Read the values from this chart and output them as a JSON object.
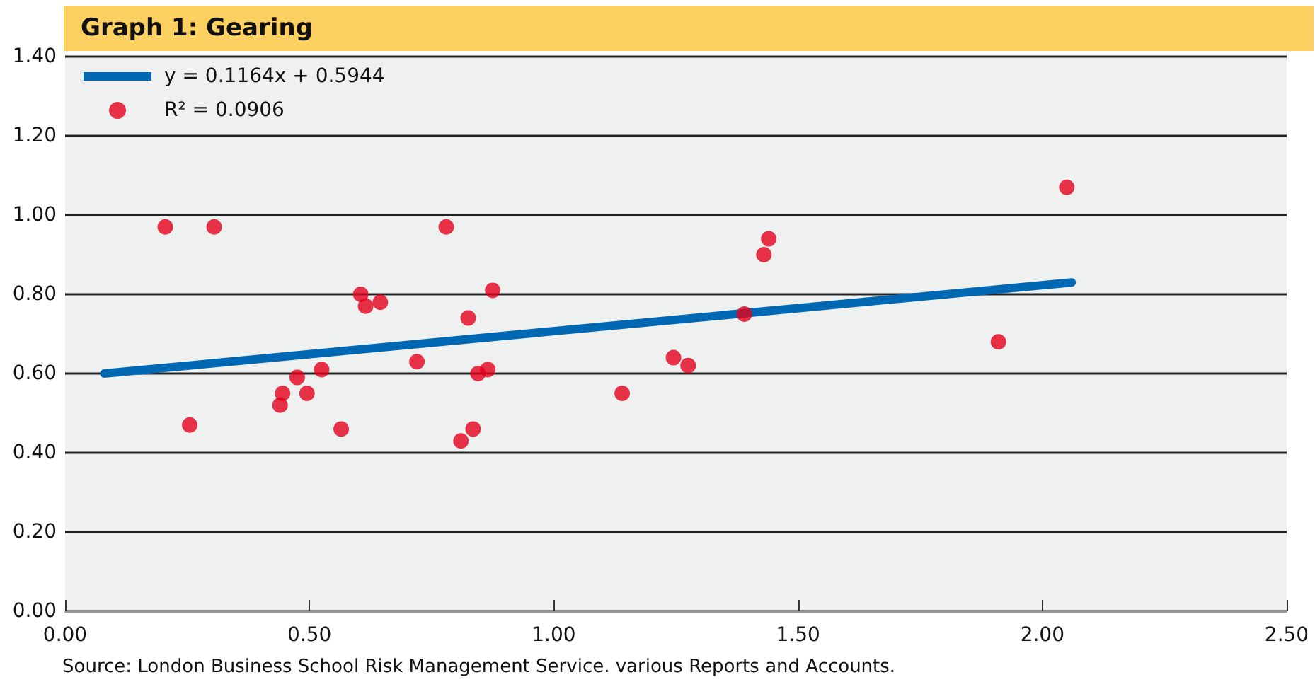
{
  "chart_data": {
    "type": "scatter",
    "title": "Graph 1: Gearing",
    "annotations": [
      "Source: London Business School Risk Management Service. various Reports and Accounts."
    ],
    "series": [
      {
        "name": "y = 0.1164x + 0.5944",
        "type": "line",
        "color": "#0068b3",
        "x": [
          0.08,
          2.06
        ],
        "values": [
          0.6,
          0.83
        ],
        "marker": "none"
      },
      {
        "name": "R² = 0.0906",
        "color": "#e2001a",
        "marker": "circle",
        "x": [
          0.205,
          0.305,
          0.255,
          0.44,
          0.445,
          0.475,
          0.495,
          0.525,
          0.565,
          0.605,
          0.615,
          0.645,
          0.72,
          0.78,
          0.81,
          0.825,
          0.835,
          0.845,
          0.865,
          0.875,
          1.14,
          1.245,
          1.275,
          1.39,
          1.43,
          1.44,
          1.91,
          2.05
        ],
        "values": [
          0.97,
          0.97,
          0.47,
          0.52,
          0.55,
          0.59,
          0.55,
          0.61,
          0.46,
          0.8,
          0.77,
          0.78,
          0.63,
          0.97,
          0.43,
          0.74,
          0.46,
          0.6,
          0.61,
          0.81,
          0.55,
          0.64,
          0.62,
          0.75,
          0.9,
          0.94,
          0.68,
          1.07
        ]
      }
    ],
    "xlim": [
      0,
      2.5
    ],
    "xticks": [
      {
        "value": 0,
        "label": "0.00"
      },
      {
        "value": 0.5,
        "label": "0.50"
      },
      {
        "value": 1,
        "label": "1.00"
      },
      {
        "value": 1.5,
        "label": "1.50"
      },
      {
        "value": 2,
        "label": "2.00"
      },
      {
        "value": 2.5,
        "label": "2.50"
      }
    ],
    "ylim": [
      0,
      1.4
    ],
    "yticks": [
      {
        "value": 0,
        "label": "0.00"
      },
      {
        "value": 0.2,
        "label": "0.20"
      },
      {
        "value": 0.4,
        "label": "0.40"
      },
      {
        "value": 0.6,
        "label": "0.60"
      },
      {
        "value": 0.8,
        "label": "0.80"
      },
      {
        "value": 1,
        "label": "1.00"
      },
      {
        "value": 1.2,
        "label": "1.20"
      },
      {
        "value": 1.4,
        "label": "1.40"
      }
    ],
    "grid": "y",
    "legend": "top left"
  }
}
